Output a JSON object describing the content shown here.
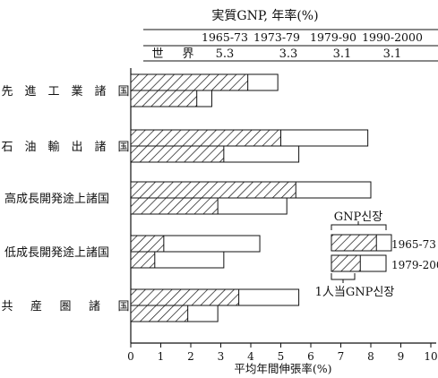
{
  "chart_data": {
    "type": "bar",
    "header": {
      "title": "実質GNP, 年率(%)",
      "periods": [
        "1965-73",
        "1973-79",
        "1979-90",
        "1990-2000"
      ],
      "row_label_chars": [
        "世",
        "界"
      ],
      "world_values": [
        "5.3",
        "3.3",
        "3.1",
        "3.1"
      ]
    },
    "categories": [
      "先進工業諸国",
      "石油輸出諸国",
      "高成長開発途上諸国",
      "低成長開発途上諸国",
      "共産圏諸国"
    ],
    "category_label_chars": [
      [
        "先",
        "進",
        "工",
        "業",
        "諸",
        "国"
      ],
      [
        "石",
        "油",
        "輸",
        "出",
        "諸",
        "国"
      ],
      [
        "高成長開発途上諸国"
      ],
      [
        "低成長開発途上諸国"
      ],
      [
        "共",
        "産",
        "圏",
        "諸",
        "国"
      ]
    ],
    "series": [
      {
        "name": "1965-73",
        "gnp_total": [
          4.9,
          7.9,
          8.0,
          4.3,
          5.6
        ],
        "gnp_per_capita": [
          3.9,
          5.0,
          5.5,
          1.1,
          3.6
        ]
      },
      {
        "name": "1979-2000",
        "gnp_total": [
          2.7,
          5.6,
          5.2,
          3.1,
          2.9
        ],
        "gnp_per_capita": [
          2.2,
          3.1,
          2.9,
          0.8,
          1.9
        ]
      }
    ],
    "legend": {
      "top_label": "GNP신장",
      "bottom_label": "1人当GNP신장",
      "period_labels": [
        "1965-73",
        "1979-2000"
      ],
      "example_values": {
        "total": 8.3,
        "per_capita": 7.8
      }
    },
    "xlabel": "平均年間伸張率(%)",
    "xticks": [
      "0",
      "1",
      "2",
      "3",
      "4",
      "5",
      "6",
      "7",
      "8",
      "9",
      "10"
    ],
    "xlim": [
      0,
      10
    ],
    "grid": false,
    "legend_placement": "right"
  }
}
